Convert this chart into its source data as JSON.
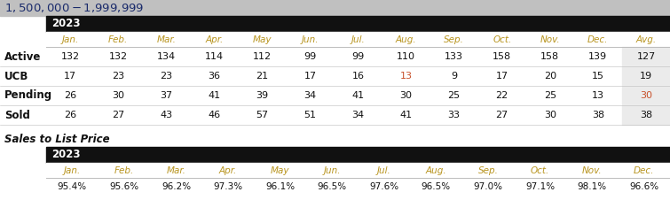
{
  "title": "$1,500,000 - $1,999,999",
  "title_bg": "#c0c0c0",
  "year_label": "2023",
  "year_bg": "#111111",
  "header_cols": [
    "Jan.",
    "Feb.",
    "Mar.",
    "Apr.",
    "May",
    "Jun.",
    "Jul.",
    "Aug.",
    "Sep.",
    "Oct.",
    "Nov.",
    "Dec.",
    "Avg."
  ],
  "header_cols2": [
    "Jan.",
    "Feb.",
    "Mar.",
    "Apr.",
    "May",
    "Jun.",
    "Jul.",
    "Aug.",
    "Sep.",
    "Oct.",
    "Nov.",
    "Dec."
  ],
  "row_labels": [
    "Active",
    "UCB",
    "Pending",
    "Sold"
  ],
  "data": [
    [
      132,
      132,
      134,
      114,
      112,
      99,
      99,
      110,
      133,
      158,
      158,
      139,
      127
    ],
    [
      17,
      23,
      23,
      36,
      21,
      17,
      16,
      13,
      9,
      17,
      20,
      15,
      19
    ],
    [
      26,
      30,
      37,
      41,
      39,
      34,
      41,
      30,
      25,
      22,
      25,
      13,
      30
    ],
    [
      26,
      27,
      43,
      46,
      57,
      51,
      34,
      41,
      33,
      27,
      30,
      38,
      38
    ]
  ],
  "sales_to_list": [
    "95.4%",
    "95.6%",
    "96.2%",
    "97.3%",
    "96.1%",
    "96.5%",
    "97.6%",
    "96.5%",
    "97.0%",
    "97.1%",
    "98.1%",
    "96.6%"
  ],
  "section2_title": "Sales to List Price",
  "avg_col_bg": "#ebebeb",
  "pending_avg_color": "#c8502a",
  "ucb_aug_color": "#c8502a",
  "header_text_color": "#b8941e",
  "title_text_color": "#1a2b6b",
  "normal_text_color": "#111111",
  "row_bg_even": "#ffffff",
  "row_bg_odd": "#ffffff",
  "divider_color": "#bbbbbb"
}
